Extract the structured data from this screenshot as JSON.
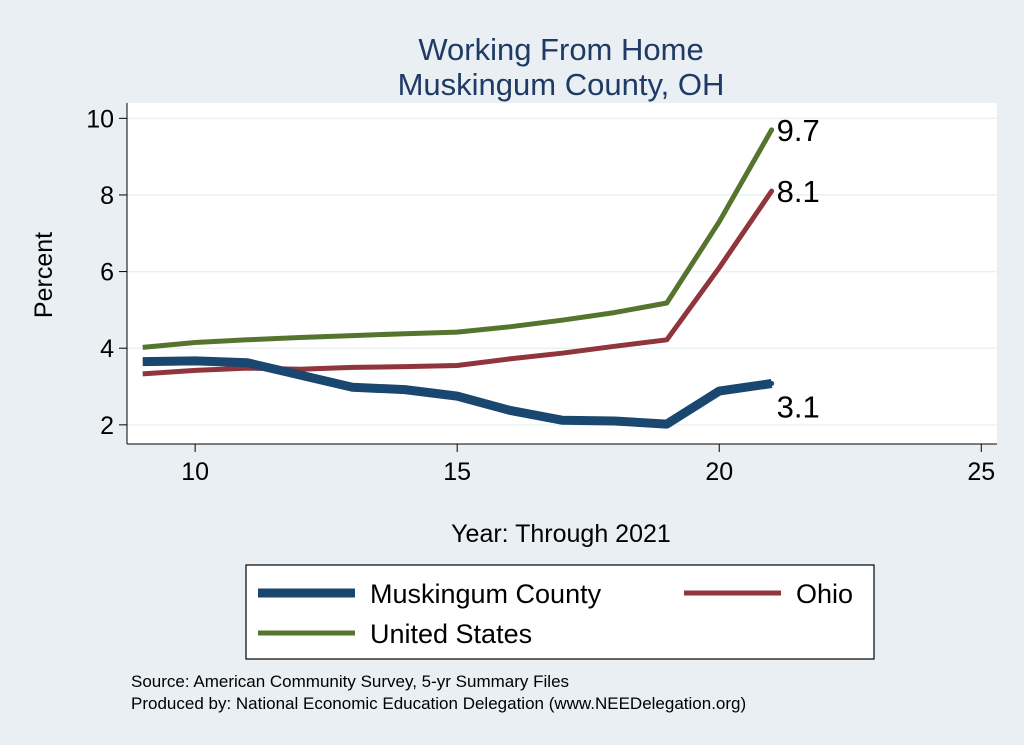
{
  "chart_data": {
    "type": "line",
    "title": [
      "Working From Home",
      "Muskingum County, OH"
    ],
    "xlabel": "Year: Through 2021",
    "ylabel": "Percent",
    "xlim": [
      8.7,
      25.3
    ],
    "ylim": [
      1.5,
      10.4
    ],
    "xticks": [
      10,
      15,
      20,
      25
    ],
    "yticks": [
      2,
      4,
      6,
      8,
      10
    ],
    "grid": true,
    "legend_position": "bottom",
    "series": [
      {
        "name": "Muskingum County",
        "color": "#1a476f",
        "x": [
          9,
          10,
          11,
          12,
          13,
          14,
          15,
          16,
          17,
          18,
          19,
          20,
          21
        ],
        "y": [
          3.65,
          3.67,
          3.62,
          3.3,
          2.98,
          2.92,
          2.75,
          2.38,
          2.12,
          2.1,
          2.02,
          2.88,
          3.08
        ],
        "end_label": "3.1"
      },
      {
        "name": "Ohio",
        "color": "#90353b",
        "x": [
          9,
          10,
          11,
          12,
          13,
          14,
          15,
          16,
          17,
          18,
          19,
          20,
          21
        ],
        "y": [
          3.33,
          3.42,
          3.48,
          3.45,
          3.5,
          3.52,
          3.55,
          3.72,
          3.87,
          4.05,
          4.22,
          6.1,
          8.1
        ],
        "end_label": "8.1"
      },
      {
        "name": "United States",
        "color": "#55752f",
        "x": [
          9,
          10,
          11,
          12,
          13,
          14,
          15,
          16,
          17,
          18,
          19,
          20,
          21
        ],
        "y": [
          4.02,
          4.15,
          4.22,
          4.28,
          4.33,
          4.38,
          4.42,
          4.56,
          4.73,
          4.93,
          5.18,
          7.3,
          9.7
        ],
        "end_label": "9.7"
      }
    ],
    "legend": [
      {
        "label": "Muskingum County",
        "series": 0
      },
      {
        "label": "Ohio",
        "series": 1
      },
      {
        "label": "United States",
        "series": 2
      }
    ]
  },
  "notes": [
    "Source: American Community Survey, 5-yr Summary Files",
    "Produced by: National Economic Education Delegation (www.NEEDelegation.org)"
  ],
  "colors": {
    "background": "#e9eff3",
    "plot_background": "#ffffff",
    "grid": "#eaf2f3",
    "title": "#1f3a64"
  }
}
